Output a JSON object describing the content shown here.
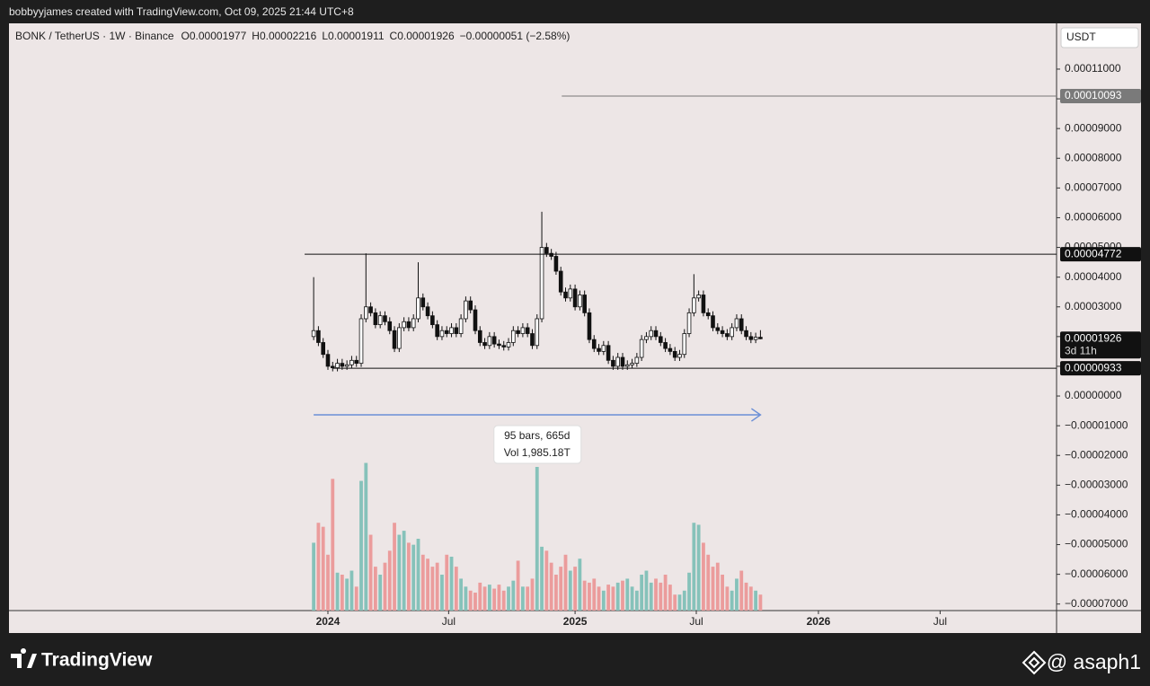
{
  "header": {
    "text": "bobbyyjames created with TradingView.com, Oct 09, 2025 21:44 UTC+8"
  },
  "chart_data": {
    "type": "candlestick",
    "legend": {
      "symbol": "BONK / TetherUS · 1W · Binance",
      "ohlc": [
        {
          "key": "O",
          "value": "0.00001977"
        },
        {
          "key": "H",
          "value": "0.00002216"
        },
        {
          "key": "L",
          "value": "0.00001911"
        },
        {
          "key": "C",
          "value": "0.00001926"
        }
      ],
      "change": "−0.00000051 (−2.58%)"
    },
    "currency": "USDT",
    "xlim": [
      -64.1,
      156.3
    ],
    "xticks": [
      {
        "value": 3,
        "label": "2024"
      },
      {
        "value": 28.4,
        "label": "Jul"
      },
      {
        "value": 55,
        "label": "2025"
      },
      {
        "value": 80.5,
        "label": "Jul"
      },
      {
        "value": 106.2,
        "label": "2026"
      },
      {
        "value": 131.8,
        "label": "Jul"
      }
    ],
    "ylim": [
      -7.22e-05,
      0.0001254
    ],
    "yticks": [
      {
        "value": 0.00011,
        "label": "0.00011000"
      },
      {
        "value": 0.0001,
        "label": "0.00010000"
      },
      {
        "value": 9e-05,
        "label": "0.00009000"
      },
      {
        "value": 8e-05,
        "label": "0.00008000"
      },
      {
        "value": 7e-05,
        "label": "0.00007000"
      },
      {
        "value": 6e-05,
        "label": "0.00006000"
      },
      {
        "value": 5e-05,
        "label": "0.00005000"
      },
      {
        "value": 4e-05,
        "label": "0.00004000"
      },
      {
        "value": 3e-05,
        "label": "0.00003000"
      },
      {
        "value": 2e-05,
        "label": "0.00002000"
      },
      {
        "value": 1e-05,
        "label": "0.00001000"
      },
      {
        "value": 0,
        "label": "0.00000000"
      },
      {
        "value": -1e-05,
        "label": "−0.00001000"
      },
      {
        "value": -2e-05,
        "label": "−0.00002000"
      },
      {
        "value": -3e-05,
        "label": "−0.00003000"
      },
      {
        "value": -4e-05,
        "label": "−0.00004000"
      },
      {
        "value": -5e-05,
        "label": "−0.00005000"
      },
      {
        "value": -6e-05,
        "label": "−0.00006000"
      },
      {
        "value": -7e-05,
        "label": "−0.00007000"
      }
    ],
    "up_color": "#ffffff",
    "down_color": "#111111",
    "wick_color": "#111111",
    "volume_up_color": "#86c2ba",
    "volume_down_color": "#eb9c9c",
    "vlim": [
      0,
      90
    ],
    "series": [
      {
        "open": [
          2e-05,
          2.2e-05,
          1.8e-05,
          1.4e-05,
          1e-05,
          9.5e-06,
          1.1e-05,
          1e-05,
          1.05e-05,
          1.2e-05,
          1.1e-05,
          2.6e-05,
          3e-05,
          2.8e-05,
          2.4e-05,
          2.7e-05,
          2.5e-05,
          2.2e-05,
          1.6e-05,
          2.3e-05,
          2.5e-05,
          2.3e-05,
          2.6e-05,
          3.3e-05,
          3e-05,
          2.7e-05,
          2.4e-05,
          2e-05,
          2.2e-05,
          2.1e-05,
          2.3e-05,
          2.1e-05,
          2.6e-05,
          3.2e-05,
          2.9e-05,
          2.2e-05,
          1.8e-05,
          1.7e-05,
          2e-05,
          1.75e-05,
          1.7e-05,
          1.65e-05,
          1.8e-05,
          2.2e-05,
          2.1e-05,
          2.3e-05,
          2.1e-05,
          1.7e-05,
          2.6e-05,
          5e-05,
          4.8e-05,
          4.7e-05,
          4.2e-05,
          3.5e-05,
          3.3e-05,
          3.6e-05,
          3e-05,
          3.4e-05,
          2.8e-05,
          1.9e-05,
          1.6e-05,
          1.5e-05,
          1.7e-05,
          1.2e-05,
          1e-05,
          1.3e-05,
          1e-05,
          1.05e-05,
          1.1e-05,
          1.3e-05,
          1.9e-05,
          2e-05,
          2.2e-05,
          2e-05,
          1.8e-05,
          1.6e-05,
          1.5e-05,
          1.3e-05,
          1.4e-05,
          2.1e-05,
          2.8e-05,
          3.3e-05,
          3.4e-05,
          2.8e-05,
          2.7e-05,
          2.3e-05,
          2.2e-05,
          2.1e-05,
          2e-05,
          2.3e-05,
          2.6e-05,
          2.2e-05,
          2e-05,
          1.9e-05,
          1.977e-05
        ],
        "high": [
          4e-05,
          2.35e-05,
          1.95e-05,
          1.55e-05,
          1.15e-05,
          1.25e-05,
          1.25e-05,
          1.2e-05,
          1.35e-05,
          1.35e-05,
          2.75e-05,
          4.8e-05,
          3.15e-05,
          2.95e-05,
          2.85e-05,
          2.85e-05,
          2.65e-05,
          2.35e-05,
          2.45e-05,
          2.65e-05,
          2.65e-05,
          2.75e-05,
          4.5e-05,
          3.45e-05,
          3.15e-05,
          2.85e-05,
          2.55e-05,
          2.35e-05,
          2.35e-05,
          2.45e-05,
          2.45e-05,
          2.75e-05,
          3.35e-05,
          3.35e-05,
          3.05e-05,
          2.35e-05,
          1.95e-05,
          2.15e-05,
          2.15e-05,
          1.9e-05,
          1.85e-05,
          1.95e-05,
          2.35e-05,
          2.35e-05,
          2.45e-05,
          2.45e-05,
          2.25e-05,
          2.75e-05,
          6.2e-05,
          5.15e-05,
          4.95e-05,
          4.85e-05,
          4.35e-05,
          3.65e-05,
          3.75e-05,
          3.75e-05,
          3.55e-05,
          3.55e-05,
          2.95e-05,
          2.05e-05,
          1.75e-05,
          1.85e-05,
          1.85e-05,
          1.35e-05,
          1.45e-05,
          1.45e-05,
          1.2e-05,
          1.25e-05,
          1.45e-05,
          2.05e-05,
          2.15e-05,
          2.35e-05,
          2.35e-05,
          2.15e-05,
          1.95e-05,
          1.75e-05,
          1.65e-05,
          1.55e-05,
          2.25e-05,
          2.95e-05,
          4.1e-05,
          3.55e-05,
          3.55e-05,
          2.95e-05,
          2.85e-05,
          2.45e-05,
          2.35e-05,
          2.25e-05,
          2.45e-05,
          2.75e-05,
          2.75e-05,
          2.35e-05,
          2.15e-05,
          2.13e-05,
          2.216e-05
        ],
        "low": [
          1.88e-05,
          1.68e-05,
          1.28e-05,
          8.8e-06,
          8.3e-06,
          8.3e-06,
          8.8e-06,
          8.8e-06,
          9.3e-06,
          9.8e-06,
          9.8e-06,
          2.48e-05,
          2.68e-05,
          2.28e-05,
          2.28e-05,
          2.38e-05,
          2.08e-05,
          1.48e-05,
          1.48e-05,
          2.18e-05,
          2.18e-05,
          2.18e-05,
          2.48e-05,
          2.88e-05,
          2.58e-05,
          2.28e-05,
          1.88e-05,
          1.88e-05,
          1.98e-05,
          1.98e-05,
          1.98e-05,
          1.98e-05,
          2.48e-05,
          2.78e-05,
          2.08e-05,
          1.68e-05,
          1.58e-05,
          1.58e-05,
          1.63e-05,
          1.58e-05,
          1.53e-05,
          1.53e-05,
          1.68e-05,
          1.98e-05,
          1.98e-05,
          1.98e-05,
          1.58e-05,
          1.58e-05,
          2.48e-05,
          4.68e-05,
          4.58e-05,
          4.08e-05,
          3.38e-05,
          3.18e-05,
          3.18e-05,
          2.88e-05,
          2.88e-05,
          2.68e-05,
          1.78e-05,
          1.48e-05,
          1.38e-05,
          1.38e-05,
          1.08e-05,
          8.8e-06,
          8.8e-06,
          8.8e-06,
          8.8e-06,
          9.3e-06,
          9.8e-06,
          1.18e-05,
          1.78e-05,
          1.88e-05,
          1.88e-05,
          1.68e-05,
          1.48e-05,
          1.38e-05,
          1.18e-05,
          1.18e-05,
          1.28e-05,
          1.98e-05,
          2.68e-05,
          3.18e-05,
          2.68e-05,
          2.58e-05,
          2.18e-05,
          2.08e-05,
          1.98e-05,
          1.88e-05,
          1.88e-05,
          2.18e-05,
          2.08e-05,
          1.88e-05,
          1.78e-05,
          1.78e-05,
          1.911e-05
        ],
        "close": [
          2.2e-05,
          1.8e-05,
          1.4e-05,
          1e-05,
          9.5e-06,
          1.1e-05,
          1e-05,
          1.05e-05,
          1.2e-05,
          1.1e-05,
          2.6e-05,
          3e-05,
          2.8e-05,
          2.4e-05,
          2.7e-05,
          2.5e-05,
          2.2e-05,
          1.6e-05,
          2.3e-05,
          2.5e-05,
          2.3e-05,
          2.6e-05,
          3.3e-05,
          3e-05,
          2.7e-05,
          2.4e-05,
          2e-05,
          2.2e-05,
          2.1e-05,
          2.3e-05,
          2.1e-05,
          2.6e-05,
          3.2e-05,
          2.9e-05,
          2.2e-05,
          1.8e-05,
          1.7e-05,
          2e-05,
          1.75e-05,
          1.7e-05,
          1.65e-05,
          1.8e-05,
          2.2e-05,
          2.1e-05,
          2.3e-05,
          2.1e-05,
          1.7e-05,
          2.6e-05,
          5e-05,
          4.8e-05,
          4.7e-05,
          4.2e-05,
          3.5e-05,
          3.3e-05,
          3.6e-05,
          3e-05,
          3.4e-05,
          2.8e-05,
          1.9e-05,
          1.6e-05,
          1.5e-05,
          1.7e-05,
          1.2e-05,
          1e-05,
          1.3e-05,
          1e-05,
          1.05e-05,
          1.1e-05,
          1.3e-05,
          1.9e-05,
          2e-05,
          2.2e-05,
          2e-05,
          1.8e-05,
          1.6e-05,
          1.5e-05,
          1.3e-05,
          1.4e-05,
          2.1e-05,
          2.8e-05,
          3.3e-05,
          3.4e-05,
          2.8e-05,
          2.7e-05,
          2.3e-05,
          2.2e-05,
          2.1e-05,
          2e-05,
          2.3e-05,
          2.6e-05,
          2.2e-05,
          2e-05,
          1.9e-05,
          1.977e-05,
          1.926e-05
        ],
        "volume": [
          34,
          44,
          42,
          28,
          66,
          19,
          18,
          16,
          20,
          12,
          65,
          74,
          38,
          22,
          18,
          24,
          30,
          44,
          38,
          40,
          34,
          33,
          36,
          28,
          26,
          22,
          24,
          18,
          28,
          27,
          22,
          16,
          12,
          10,
          9,
          14,
          12,
          13,
          11,
          13,
          10,
          12,
          15,
          25,
          12,
          12,
          16,
          72,
          32,
          30,
          24,
          18,
          22,
          28,
          20,
          22,
          26,
          15,
          14,
          16,
          12,
          10,
          13,
          12,
          14,
          15,
          16,
          12,
          10,
          18,
          20,
          14,
          16,
          14,
          18,
          13,
          8,
          8,
          10,
          19,
          44,
          43,
          34,
          28,
          22,
          24,
          18,
          12,
          10,
          16,
          20,
          14,
          12,
          10,
          8
        ]
      }
    ],
    "levels": [
      {
        "x": 52.2,
        "value": 0.00010093,
        "label": "0.00010093",
        "color": "#7a7a7a"
      },
      {
        "x": -1.9,
        "value": 4.772e-05,
        "label": "0.00004772",
        "color": "#111111"
      },
      {
        "x": 4,
        "value": 9.33e-06,
        "label": "0.00000933",
        "color": "#111111"
      }
    ],
    "last_price": {
      "value": 1.926e-05,
      "label": "0.00001926",
      "countdown": "3d 11h"
    },
    "measure": {
      "x": [
        0,
        94
      ],
      "y": -6.35e-06,
      "color": "#6b8fd6",
      "lines": [
        "95 bars, 665d",
        "Vol 1,985.18T"
      ]
    }
  },
  "footer": {
    "brand": "TradingView",
    "watermark": "@ asaph1"
  }
}
